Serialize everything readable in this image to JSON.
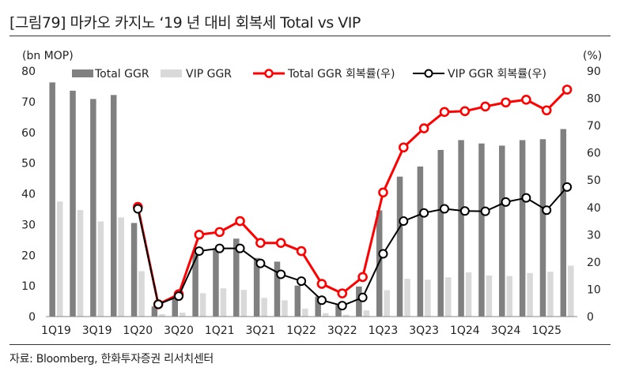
{
  "header": {
    "title": "[그림79]   마카오 카지노 ‘19 년 대비 회복세 Total vs VIP"
  },
  "footer": {
    "source": "자료: Bloomberg, 한화투자증권 리서치센터"
  },
  "colors": {
    "total_bar": "#808080",
    "vip_bar": "#d9d9d9",
    "total_line": "#ff0000",
    "vip_line": "#000000"
  },
  "chart_data": {
    "type": "bar+line",
    "y_left_unit": "(bn MOP)",
    "y_right_unit": "(%)",
    "ylim_left": [
      0,
      80
    ],
    "ylim_right": [
      0,
      90
    ],
    "yticks_left": [
      "0",
      "10",
      "20",
      "30",
      "40",
      "50",
      "60",
      "70",
      "80"
    ],
    "yticks_right": [
      "0",
      "10",
      "20",
      "30",
      "40",
      "50",
      "60",
      "70",
      "80",
      "90"
    ],
    "categories": [
      "1Q19",
      "2Q19",
      "3Q19",
      "4Q19",
      "1Q20",
      "2Q20",
      "3Q20",
      "4Q20",
      "1Q21",
      "2Q21",
      "3Q21",
      "4Q21",
      "1Q22",
      "2Q22",
      "3Q22",
      "4Q22",
      "1Q23",
      "2Q23",
      "3Q23",
      "4Q23",
      "1Q24",
      "2Q24",
      "3Q24",
      "4Q24",
      "1Q25",
      "2Q25"
    ],
    "xtick_labels": [
      "1Q19",
      "3Q19",
      "1Q20",
      "3Q20",
      "1Q21",
      "3Q21",
      "1Q22",
      "3Q22",
      "1Q23",
      "3Q23",
      "1Q24",
      "3Q24",
      "1Q25"
    ],
    "series": [
      {
        "name": "Total GGR",
        "kind": "bar",
        "axis": "left",
        "values": [
          76.3,
          73.6,
          70.9,
          72.2,
          30.5,
          3.3,
          5.8,
          21.3,
          22.3,
          25.4,
          19.1,
          17.9,
          10.1,
          6.5,
          3.8,
          9.8,
          34.6,
          45.6,
          48.9,
          54.3,
          57.5,
          56.4,
          55.7,
          57.5,
          57.8,
          61.1
        ]
      },
      {
        "name": "VIP GGR",
        "kind": "bar",
        "axis": "left",
        "values": [
          37.5,
          34.7,
          31.0,
          32.3,
          14.8,
          0.8,
          1.3,
          7.6,
          9.2,
          8.7,
          6.1,
          5.3,
          2.6,
          1.1,
          0.6,
          2.0,
          8.6,
          12.3,
          12.0,
          12.8,
          14.4,
          13.4,
          13.2,
          14.2,
          14.6,
          16.6
        ]
      },
      {
        "name": "Total GGR 회복률(우)",
        "kind": "line",
        "axis": "right",
        "values": [
          null,
          null,
          null,
          null,
          40.2,
          4.5,
          8.2,
          30.0,
          31.0,
          35.0,
          27.0,
          27.0,
          24.0,
          12.0,
          8.5,
          14.5,
          45.5,
          62.0,
          69.0,
          75.0,
          75.3,
          77.0,
          78.5,
          79.5,
          75.6,
          83.2
        ]
      },
      {
        "name": "VIP GGR 회복률(우)",
        "kind": "line",
        "axis": "right",
        "values": [
          null,
          null,
          null,
          null,
          39.5,
          4.5,
          7.5,
          24.0,
          25.0,
          25.0,
          19.5,
          15.5,
          13.0,
          6.0,
          4.0,
          7.0,
          23.0,
          35.0,
          38.0,
          39.5,
          38.7,
          38.6,
          42.0,
          43.5,
          39.0,
          47.5
        ]
      }
    ]
  }
}
